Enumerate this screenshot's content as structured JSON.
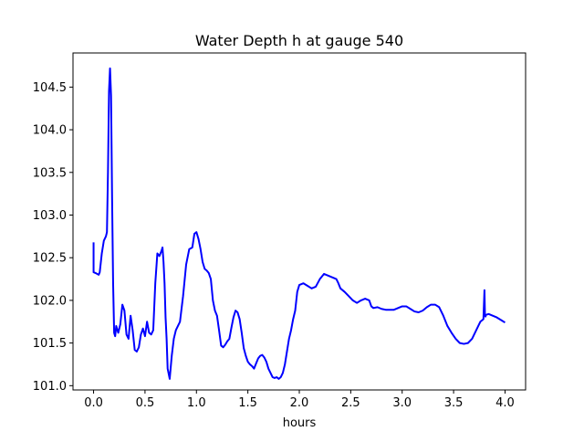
{
  "chart_data": {
    "type": "line",
    "title": "Water Depth h at gauge 540",
    "xlabel": "hours",
    "ylabel": "",
    "xlim": [
      -0.2,
      4.2
    ],
    "ylim": [
      100.95,
      104.9
    ],
    "xticks": [
      0.0,
      0.5,
      1.0,
      1.5,
      2.0,
      2.5,
      3.0,
      3.5,
      4.0
    ],
    "xtick_labels": [
      "0.0",
      "0.5",
      "1.0",
      "1.5",
      "2.0",
      "2.5",
      "3.0",
      "3.5",
      "4.0"
    ],
    "yticks": [
      101.0,
      101.5,
      102.0,
      102.5,
      103.0,
      103.5,
      104.0,
      104.5
    ],
    "ytick_labels": [
      "101.0",
      "101.5",
      "102.0",
      "102.5",
      "103.0",
      "103.5",
      "104.0",
      "104.5"
    ],
    "grid": false,
    "series": [
      {
        "color": "#0000ff",
        "x": [
          0.0,
          0.0,
          0.02,
          0.05,
          0.06,
          0.08,
          0.1,
          0.12,
          0.13,
          0.14,
          0.15,
          0.16,
          0.17,
          0.18,
          0.19,
          0.2,
          0.21,
          0.22,
          0.24,
          0.26,
          0.28,
          0.3,
          0.32,
          0.34,
          0.36,
          0.38,
          0.4,
          0.42,
          0.44,
          0.46,
          0.48,
          0.5,
          0.52,
          0.54,
          0.56,
          0.58,
          0.6,
          0.62,
          0.64,
          0.66,
          0.67,
          0.68,
          0.69,
          0.7,
          0.71,
          0.72,
          0.74,
          0.76,
          0.78,
          0.8,
          0.82,
          0.84,
          0.87,
          0.9,
          0.93,
          0.96,
          0.98,
          1.0,
          1.02,
          1.04,
          1.06,
          1.08,
          1.1,
          1.12,
          1.14,
          1.16,
          1.18,
          1.2,
          1.22,
          1.24,
          1.26,
          1.28,
          1.3,
          1.32,
          1.34,
          1.36,
          1.38,
          1.4,
          1.42,
          1.44,
          1.46,
          1.48,
          1.5,
          1.52,
          1.54,
          1.56,
          1.58,
          1.6,
          1.62,
          1.64,
          1.66,
          1.68,
          1.7,
          1.72,
          1.74,
          1.76,
          1.78,
          1.8,
          1.82,
          1.84,
          1.86,
          1.88,
          1.9,
          1.92,
          1.94,
          1.96,
          1.98,
          2.0,
          2.04,
          2.08,
          2.12,
          2.16,
          2.2,
          2.24,
          2.28,
          2.32,
          2.36,
          2.38,
          2.4,
          2.44,
          2.48,
          2.52,
          2.56,
          2.6,
          2.64,
          2.68,
          2.7,
          2.72,
          2.76,
          2.8,
          2.84,
          2.88,
          2.92,
          2.96,
          3.0,
          3.04,
          3.08,
          3.12,
          3.16,
          3.2,
          3.24,
          3.28,
          3.32,
          3.36,
          3.4,
          3.44,
          3.48,
          3.52,
          3.56,
          3.6,
          3.64,
          3.68,
          3.72,
          3.76,
          3.79,
          3.8,
          3.805,
          3.81,
          3.815,
          3.84,
          3.88,
          3.92,
          3.96,
          4.0
        ],
        "y": [
          102.68,
          102.33,
          102.32,
          102.3,
          102.33,
          102.55,
          102.7,
          102.75,
          102.8,
          103.5,
          104.45,
          104.72,
          104.4,
          103.2,
          102.2,
          101.62,
          101.58,
          101.7,
          101.62,
          101.72,
          101.95,
          101.88,
          101.6,
          101.55,
          101.82,
          101.65,
          101.42,
          101.4,
          101.45,
          101.6,
          101.67,
          101.58,
          101.75,
          101.62,
          101.6,
          101.65,
          102.2,
          102.55,
          102.52,
          102.58,
          102.62,
          102.45,
          102.2,
          101.8,
          101.55,
          101.2,
          101.08,
          101.35,
          101.55,
          101.65,
          101.7,
          101.75,
          102.05,
          102.42,
          102.6,
          102.62,
          102.78,
          102.8,
          102.72,
          102.6,
          102.45,
          102.37,
          102.35,
          102.32,
          102.25,
          102.0,
          101.88,
          101.82,
          101.65,
          101.47,
          101.45,
          101.48,
          101.52,
          101.55,
          101.68,
          101.8,
          101.88,
          101.86,
          101.78,
          101.62,
          101.44,
          101.35,
          101.28,
          101.25,
          101.23,
          101.2,
          101.26,
          101.32,
          101.35,
          101.36,
          101.33,
          101.28,
          101.2,
          101.15,
          101.1,
          101.09,
          101.1,
          101.08,
          101.1,
          101.15,
          101.25,
          101.4,
          101.55,
          101.65,
          101.78,
          101.88,
          102.1,
          102.18,
          102.2,
          102.17,
          102.14,
          102.16,
          102.25,
          102.31,
          102.29,
          102.27,
          102.25,
          102.2,
          102.14,
          102.1,
          102.05,
          102.0,
          101.97,
          102.0,
          102.02,
          102.0,
          101.93,
          101.91,
          101.92,
          101.9,
          101.89,
          101.89,
          101.89,
          101.91,
          101.93,
          101.93,
          101.9,
          101.87,
          101.86,
          101.88,
          101.92,
          101.95,
          101.95,
          101.92,
          101.82,
          101.7,
          101.62,
          101.55,
          101.5,
          101.49,
          101.5,
          101.55,
          101.65,
          101.75,
          101.78,
          102.12,
          101.82,
          101.81,
          101.83,
          101.84,
          101.82,
          101.8,
          101.77,
          101.74
        ]
      }
    ]
  }
}
